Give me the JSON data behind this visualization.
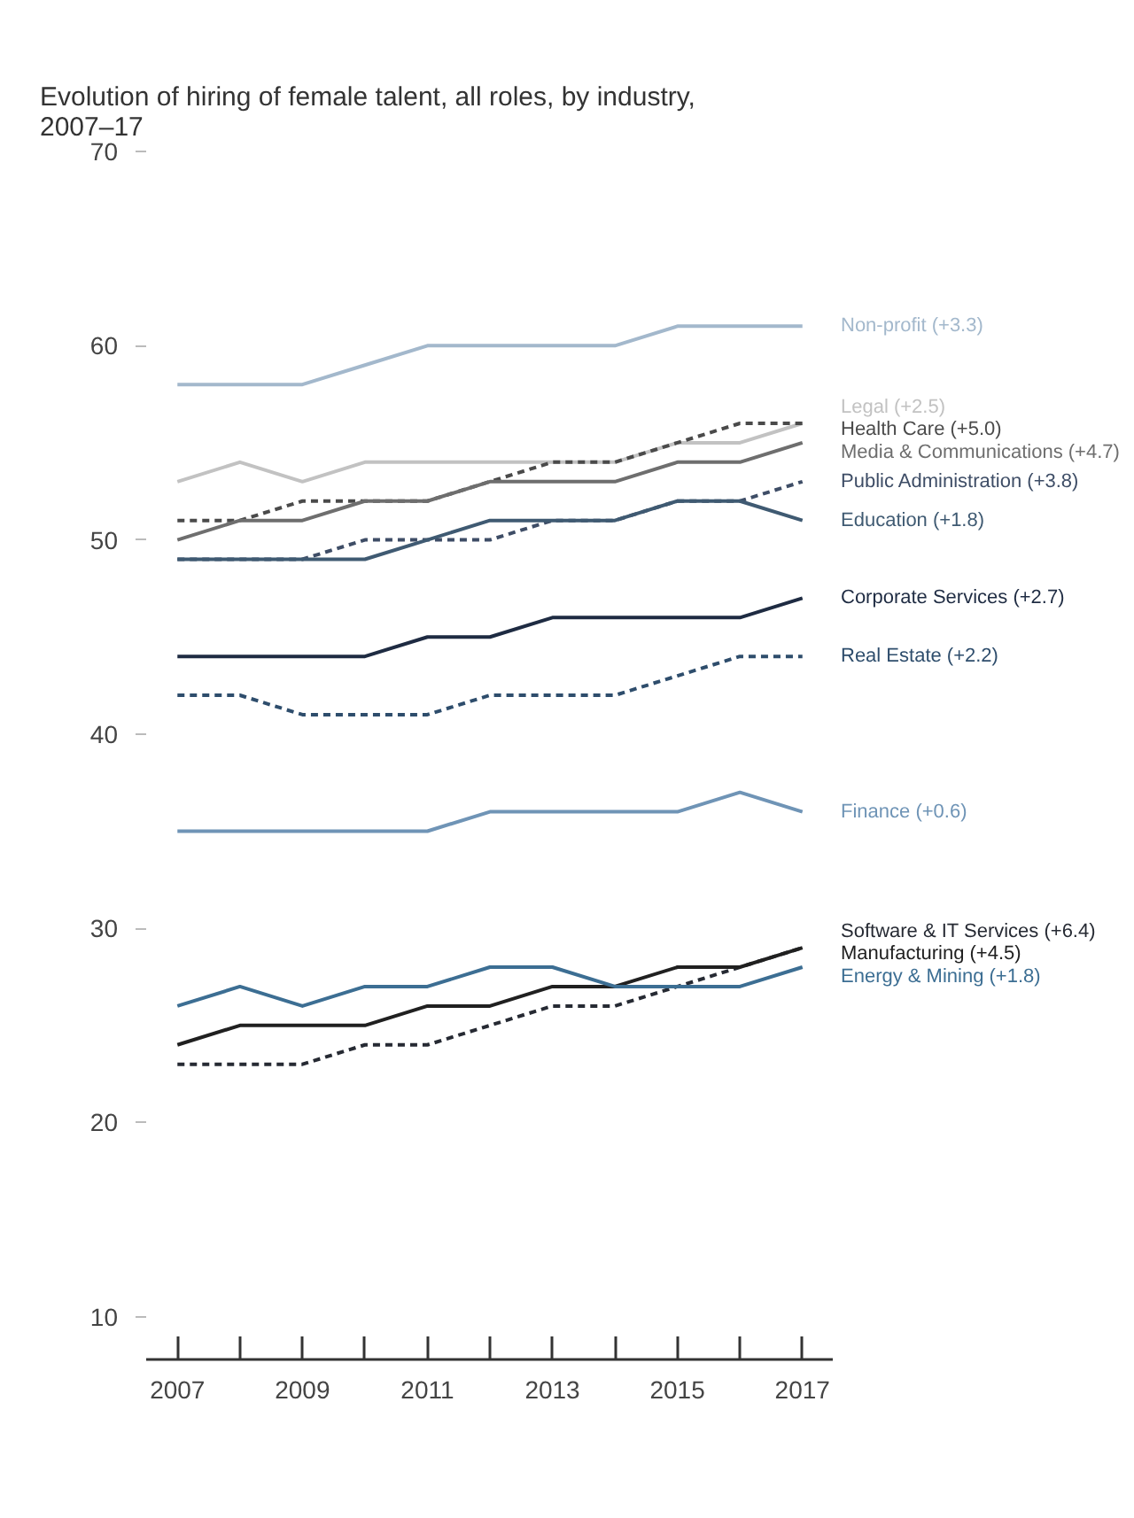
{
  "chart_data": {
    "type": "line",
    "title": "Evolution of hiring of female talent, all roles, by industry, 2007–17",
    "x": [
      2007,
      2008,
      2009,
      2010,
      2011,
      2012,
      2013,
      2014,
      2015,
      2016,
      2017
    ],
    "xlim": [
      2006.5,
      2017.5
    ],
    "xticks": [
      2007,
      {
        "value": 2008,
        "label": null
      },
      2009,
      {
        "value": 2010,
        "label": null
      },
      2011,
      {
        "value": 2012,
        "label": null
      },
      2013,
      {
        "value": 2014,
        "label": null
      },
      2015,
      {
        "value": 2016,
        "label": null
      },
      2017
    ],
    "ylim": [
      7.8,
      70
    ],
    "yticks": [
      10,
      20,
      30,
      40,
      50,
      60,
      70
    ],
    "grid": false,
    "series": [
      {
        "name": "Non-profit (+3.3)",
        "color": "#a3b8cc",
        "line_style": "solid",
        "values": [
          58,
          58,
          58,
          59,
          60,
          60,
          60,
          60,
          61,
          61,
          61
        ]
      },
      {
        "name": "Legal (+2.5)",
        "color": "#c2c2c2",
        "line_style": "solid",
        "values": [
          53,
          54,
          53,
          54,
          54,
          54,
          54,
          54,
          55,
          55,
          56
        ]
      },
      {
        "name": "Health Care (+5.0)",
        "color": "#4a4a4a",
        "line_style": "dashed",
        "values": [
          51,
          51,
          52,
          52,
          52,
          53,
          54,
          54,
          55,
          56,
          56
        ]
      },
      {
        "name": "Media & Communications (+4.7)",
        "color": "#6e6e6e",
        "line_style": "solid",
        "values": [
          50,
          51,
          51,
          52,
          52,
          53,
          53,
          53,
          54,
          54,
          55
        ]
      },
      {
        "name": "Public Administration (+3.8)",
        "color": "#3e4d66",
        "line_style": "dashed",
        "values": [
          49,
          49,
          49,
          50,
          50,
          50,
          51,
          51,
          52,
          52,
          53
        ]
      },
      {
        "name": "Education (+1.8)",
        "color": "#3f5a72",
        "line_style": "solid",
        "values": [
          49,
          49,
          49,
          49,
          50,
          51,
          51,
          51,
          52,
          52,
          51
        ]
      },
      {
        "name": "Corporate Services (+2.7)",
        "color": "#1e2b42",
        "line_style": "solid",
        "values": [
          44,
          44,
          44,
          44,
          45,
          45,
          46,
          46,
          46,
          46,
          47
        ]
      },
      {
        "name": "Real Estate (+2.2)",
        "color": "#2e4d6c",
        "line_style": "dashed",
        "values": [
          42,
          42,
          41,
          41,
          41,
          42,
          42,
          42,
          43,
          44,
          44
        ]
      },
      {
        "name": "Finance (+0.6)",
        "color": "#6f94b6",
        "line_style": "solid",
        "values": [
          35,
          35,
          35,
          35,
          35,
          36,
          36,
          36,
          36,
          37,
          36
        ]
      },
      {
        "name": "Software & IT Services (+6.4)",
        "color": "#262a33",
        "line_style": "dashed",
        "values": [
          23,
          23,
          23,
          24,
          24,
          25,
          26,
          26,
          27,
          28,
          29
        ]
      },
      {
        "name": "Manufacturing (+4.5)",
        "color": "#202020",
        "line_style": "solid",
        "values": [
          24,
          25,
          25,
          25,
          26,
          26,
          27,
          27,
          28,
          28,
          29
        ]
      },
      {
        "name": "Energy & Mining (+1.8)",
        "color": "#3c6e93",
        "line_style": "solid",
        "values": [
          26,
          27,
          26,
          27,
          27,
          28,
          28,
          27,
          27,
          27,
          28
        ]
      }
    ]
  }
}
